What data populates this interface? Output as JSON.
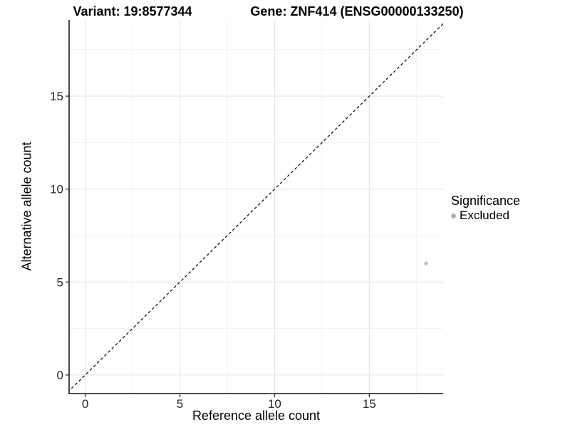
{
  "chart_data": {
    "type": "scatter",
    "title_left": "Variant: 19:8577344",
    "title_right": "Gene: ZNF414 (ENSG00000133250)",
    "xlabel": "Reference allele count",
    "ylabel": "Alternative allele count",
    "xlim": [
      -0.85,
      18.9
    ],
    "ylim": [
      -1.0,
      19.1
    ],
    "x_ticks": [
      0,
      5,
      10,
      15
    ],
    "y_ticks": [
      0,
      5,
      10,
      15
    ],
    "x_minor_gridlines": [
      2.5,
      7.5,
      12.5,
      17.5
    ],
    "y_minor_gridlines": [
      2.5,
      7.5,
      12.5,
      17.5
    ],
    "grid": true,
    "legend_position": "right",
    "points": [
      {
        "x": 18,
        "y": 6,
        "series": "Excluded"
      }
    ],
    "reference_line": {
      "type": "identity",
      "slope": 1,
      "intercept": 0,
      "style": "dashed",
      "color": "#000000"
    },
    "legend": {
      "title": "Significance",
      "items": [
        {
          "label": "Excluded",
          "color": "#bebebe"
        }
      ]
    },
    "colors": {
      "point": "#c2c2c2",
      "legend_key": "#b3b3b3",
      "grid_major": "#e4e4e4",
      "grid_minor": "#f2f2f2",
      "axis_line": "#333333",
      "tick_label": "#262626",
      "background": "#ffffff"
    }
  }
}
